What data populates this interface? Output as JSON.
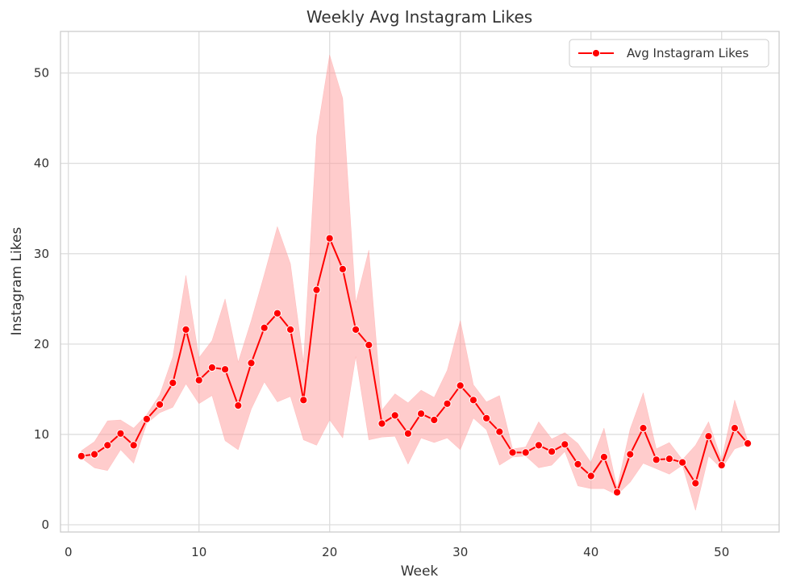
{
  "chart_data": {
    "type": "line",
    "title": "Weekly Avg Instagram Likes",
    "xlabel": "Week",
    "ylabel": "Instagram Likes",
    "xlim": [
      -0.6,
      54.4
    ],
    "ylim": [
      -0.8,
      54.6
    ],
    "x_ticks": [
      0,
      10,
      20,
      30,
      40,
      50
    ],
    "y_ticks": [
      0,
      10,
      20,
      30,
      40,
      50
    ],
    "grid": true,
    "legend_position": "top-right",
    "series": [
      {
        "name": "Avg Instagram Likes",
        "color": "#ff0000",
        "band_color": "#ff9999",
        "marker": "circle",
        "x": [
          1,
          2,
          3,
          4,
          5,
          6,
          7,
          8,
          9,
          10,
          11,
          12,
          13,
          14,
          15,
          16,
          17,
          18,
          19,
          20,
          21,
          22,
          23,
          24,
          25,
          26,
          27,
          28,
          29,
          30,
          31,
          32,
          33,
          34,
          35,
          36,
          37,
          38,
          39,
          40,
          41,
          42,
          43,
          44,
          45,
          46,
          47,
          48,
          49,
          50,
          51,
          52
        ],
        "y": [
          7.6,
          7.8,
          8.8,
          10.1,
          8.8,
          11.7,
          13.3,
          15.7,
          21.6,
          16.0,
          17.4,
          17.2,
          13.2,
          17.9,
          21.8,
          23.4,
          21.6,
          13.8,
          26.0,
          31.7,
          28.3,
          21.6,
          19.9,
          11.2,
          12.1,
          10.1,
          12.3,
          11.6,
          13.4,
          15.4,
          13.8,
          11.8,
          10.3,
          8.0,
          8.0,
          8.8,
          8.1,
          8.9,
          6.7,
          5.4,
          7.5,
          3.6,
          7.8,
          10.7,
          7.2,
          7.3,
          6.9,
          4.6,
          9.8,
          6.6,
          10.7,
          9.0
        ],
        "ci_lower": [
          7.4,
          6.3,
          6.0,
          8.3,
          6.8,
          11.2,
          12.4,
          13.0,
          15.6,
          13.4,
          14.3,
          9.3,
          8.3,
          12.8,
          15.8,
          13.6,
          14.2,
          9.4,
          8.8,
          11.6,
          9.6,
          18.6,
          9.4,
          9.7,
          9.8,
          6.7,
          9.6,
          9.1,
          9.6,
          8.3,
          11.8,
          10.5,
          6.6,
          7.5,
          7.6,
          6.3,
          6.6,
          8.1,
          4.3,
          4.0,
          4.0,
          3.3,
          4.7,
          6.8,
          6.2,
          5.6,
          6.6,
          1.6,
          7.6,
          6.2,
          8.4,
          8.9
        ],
        "ci_upper": [
          8.2,
          9.2,
          11.5,
          11.6,
          10.7,
          12.2,
          14.4,
          18.6,
          27.6,
          18.5,
          20.4,
          25.0,
          18.0,
          22.6,
          27.7,
          33.0,
          28.9,
          18.0,
          43.0,
          52.0,
          47.2,
          24.6,
          30.4,
          12.7,
          14.5,
          13.5,
          14.9,
          14.1,
          17.1,
          22.6,
          15.5,
          13.6,
          14.3,
          8.4,
          8.6,
          11.4,
          9.5,
          10.2,
          9.0,
          6.9,
          10.7,
          4.1,
          10.6,
          14.6,
          8.4,
          9.1,
          7.2,
          8.8,
          11.4,
          7.2,
          13.8,
          9.3
        ]
      }
    ]
  }
}
